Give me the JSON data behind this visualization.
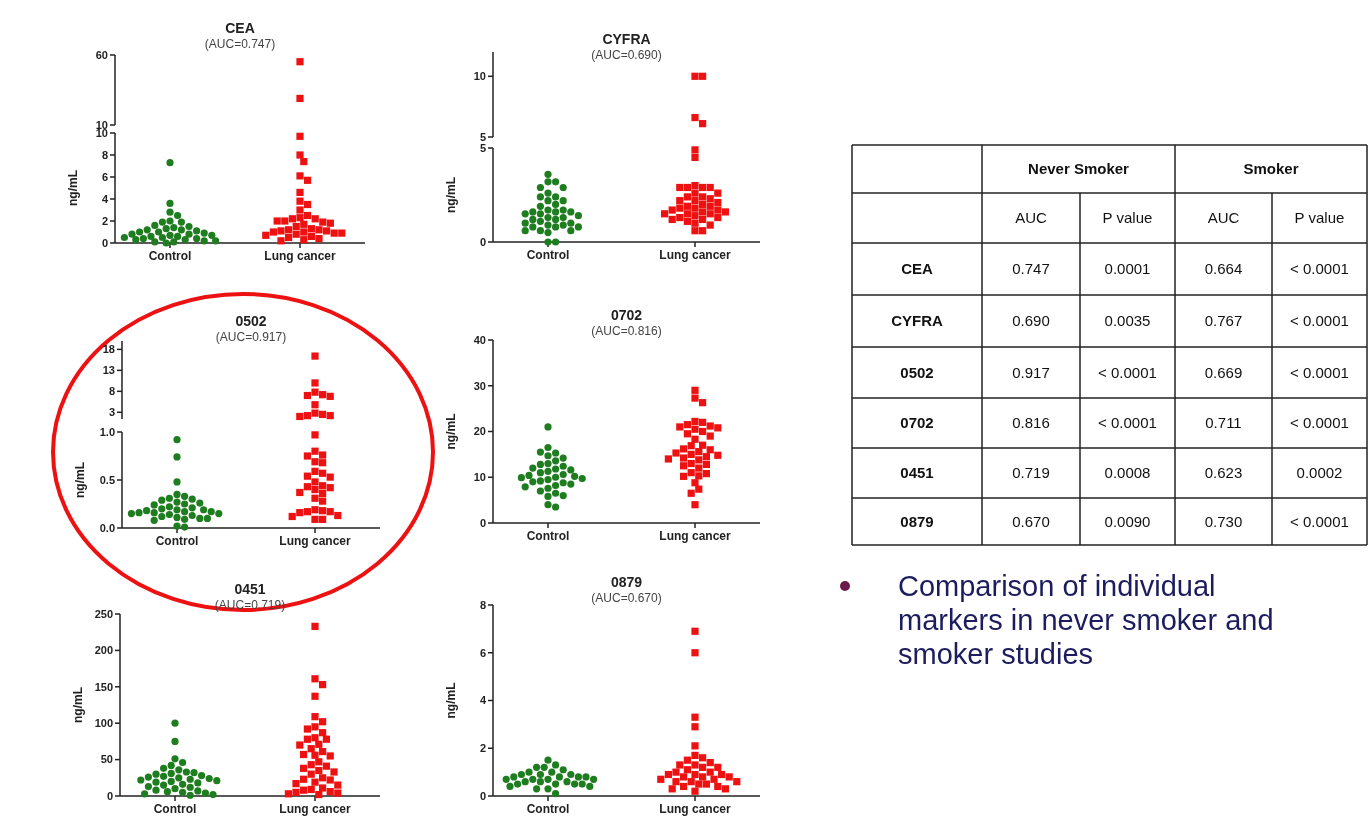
{
  "chart_data": [
    {
      "type": "scatter",
      "title": "CEA",
      "subtitle": "(AUC=0.747)",
      "categories": [
        "Control",
        "Lung cancer"
      ],
      "tick_labels": "y",
      "ylim": [
        10,
        60
      ],
      "yticks": [
        10,
        60
      ],
      "series": [
        {
          "type": "scatter",
          "color": "#ee1111",
          "marker": "square",
          "x": [
            "Lung cancer",
            "Lung cancer"
          ],
          "values": [
            55.2,
            29
          ]
        }
      ]
    },
    {
      "type": "scatter",
      "categories": [
        "Control",
        "Lung cancer"
      ],
      "ylabel": "ng/mL",
      "ylim": [
        0,
        10
      ],
      "yticks": [
        0,
        2,
        4,
        6,
        8,
        10
      ],
      "series": [
        {
          "type": "scatter",
          "color": "#1e7d1e",
          "marker": "circle",
          "x": [
            "Control",
            "Control",
            "Control",
            "Control",
            "Control",
            "Control",
            "Control",
            "Control",
            "Control",
            "Control",
            "Control",
            "Control",
            "Control",
            "Control",
            "Control",
            "Control",
            "Control",
            "Control",
            "Control",
            "Control",
            "Control",
            "Control",
            "Control",
            "Control",
            "Control",
            "Control",
            "Control",
            "Control",
            "Control",
            "Control",
            "Control",
            "Control",
            "Control",
            "Control"
          ],
          "values": [
            7.3,
            3.6,
            2.8,
            2.5,
            2.0,
            1.9,
            1.9,
            1.6,
            1.5,
            1.4,
            1.3,
            1.2,
            1.2,
            1.1,
            1.0,
            1.0,
            0.9,
            0.8,
            0.8,
            0.7,
            0.7,
            0.6,
            0.6,
            0.5,
            0.5,
            0.4,
            0.4,
            0.3,
            0.3,
            0.2,
            0.2,
            0.1,
            0.1,
            0.0
          ]
        },
        {
          "type": "scatter",
          "color": "#ee1111",
          "marker": "square",
          "x": [
            "Lung cancer",
            "Lung cancer",
            "Lung cancer",
            "Lung cancer",
            "Lung cancer",
            "Lung cancer",
            "Lung cancer",
            "Lung cancer",
            "Lung cancer",
            "Lung cancer",
            "Lung cancer",
            "Lung cancer",
            "Lung cancer",
            "Lung cancer",
            "Lung cancer",
            "Lung cancer",
            "Lung cancer",
            "Lung cancer",
            "Lung cancer",
            "Lung cancer",
            "Lung cancer",
            "Lung cancer",
            "Lung cancer",
            "Lung cancer",
            "Lung cancer",
            "Lung cancer",
            "Lung cancer",
            "Lung cancer",
            "Lung cancer",
            "Lung cancer",
            "Lung cancer",
            "Lung cancer",
            "Lung cancer",
            "Lung cancer",
            "Lung cancer"
          ],
          "values": [
            9.7,
            8.0,
            7.4,
            6.1,
            5.7,
            4.6,
            3.8,
            3.5,
            3.0,
            2.5,
            2.3,
            2.2,
            2.2,
            2.0,
            1.9,
            1.7,
            1.5,
            1.3,
            1.2,
            1.2,
            1.1,
            1.1,
            1.0,
            1.0,
            0.9,
            0.8,
            0.7,
            0.6,
            0.5,
            0.4,
            0.3,
            0.2,
            2.0,
            1.8,
            0.9
          ]
        }
      ]
    },
    {
      "type": "scatter",
      "title": "CYFRA",
      "subtitle": "(AUC=0.690)",
      "categories": [
        "Control",
        "Lung cancer"
      ],
      "tick_labels": "y",
      "ylim": [
        5,
        12
      ],
      "yticks": [
        5,
        10
      ],
      "series": [
        {
          "type": "scatter",
          "color": "#ee1111",
          "marker": "square",
          "x": [
            "Lung cancer",
            "Lung cancer",
            "Lung cancer",
            "Lung cancer"
          ],
          "values": [
            10.0,
            10.0,
            6.6,
            6.1
          ]
        }
      ]
    },
    {
      "type": "scatter",
      "categories": [
        "Control",
        "Lung cancer"
      ],
      "ylabel": "ng/mL",
      "ylim": [
        0,
        5
      ],
      "yticks": [
        0,
        5
      ],
      "series": [
        {
          "type": "scatter",
          "color": "#1e7d1e",
          "marker": "circle",
          "x": [
            "Control",
            "Control",
            "Control",
            "Control",
            "Control",
            "Control",
            "Control",
            "Control",
            "Control",
            "Control",
            "Control",
            "Control",
            "Control",
            "Control",
            "Control",
            "Control",
            "Control",
            "Control",
            "Control",
            "Control",
            "Control",
            "Control",
            "Control",
            "Control",
            "Control",
            "Control",
            "Control",
            "Control",
            "Control",
            "Control",
            "Control",
            "Control",
            "Control",
            "Control",
            "Control",
            "Control",
            "Control",
            "Control"
          ],
          "values": [
            3.6,
            3.2,
            3.2,
            2.9,
            2.9,
            2.6,
            2.4,
            2.4,
            2.2,
            2.2,
            2.0,
            1.9,
            1.7,
            1.7,
            1.6,
            1.6,
            1.6,
            1.5,
            1.5,
            1.4,
            1.3,
            1.3,
            1.2,
            1.2,
            1.1,
            1.0,
            1.0,
            0.9,
            0.9,
            0.8,
            0.8,
            0.8,
            0.6,
            0.6,
            0.6,
            0.5,
            0.0,
            0.0
          ]
        },
        {
          "type": "scatter",
          "color": "#ee1111",
          "marker": "square",
          "x": [
            "Lung cancer",
            "Lung cancer",
            "Lung cancer",
            "Lung cancer",
            "Lung cancer",
            "Lung cancer",
            "Lung cancer",
            "Lung cancer",
            "Lung cancer",
            "Lung cancer",
            "Lung cancer",
            "Lung cancer",
            "Lung cancer",
            "Lung cancer",
            "Lung cancer",
            "Lung cancer",
            "Lung cancer",
            "Lung cancer",
            "Lung cancer",
            "Lung cancer",
            "Lung cancer",
            "Lung cancer",
            "Lung cancer",
            "Lung cancer",
            "Lung cancer",
            "Lung cancer",
            "Lung cancer",
            "Lung cancer",
            "Lung cancer",
            "Lung cancer",
            "Lung cancer",
            "Lung cancer",
            "Lung cancer",
            "Lung cancer",
            "Lung cancer",
            "Lung cancer",
            "Lung cancer"
          ],
          "values": [
            4.9,
            4.5,
            3.0,
            2.9,
            2.9,
            2.9,
            2.9,
            2.6,
            2.6,
            2.4,
            2.4,
            2.3,
            2.2,
            2.2,
            2.1,
            2.0,
            1.9,
            1.9,
            1.8,
            1.8,
            1.7,
            1.7,
            1.6,
            1.6,
            1.5,
            1.5,
            1.5,
            1.4,
            1.3,
            1.3,
            1.2,
            1.2,
            1.1,
            1.0,
            0.6,
            0.6,
            0.9
          ]
        }
      ]
    },
    {
      "type": "scatter",
      "title": "0502",
      "subtitle": "(AUC=0.917)",
      "categories": [
        "Control",
        "Lung cancer"
      ],
      "tick_labels": "y",
      "ylim": [
        1.4,
        20
      ],
      "yticks": [
        3,
        8,
        13,
        18
      ],
      "series": [
        {
          "type": "scatter",
          "color": "#ee1111",
          "marker": "square",
          "x": [
            "Lung cancer",
            "Lung cancer",
            "Lung cancer",
            "Lung cancer",
            "Lung cancer",
            "Lung cancer",
            "Lung cancer",
            "Lung cancer",
            "Lung cancer",
            "Lung cancer",
            "Lung cancer",
            "Lung cancer"
          ],
          "values": [
            16.4,
            10.0,
            7.8,
            7.2,
            7.0,
            6.8,
            4.8,
            2.8,
            2.5,
            2.2,
            2.2,
            2.0
          ]
        }
      ]
    },
    {
      "type": "scatter",
      "categories": [
        "Control",
        "Lung cancer"
      ],
      "ylabel": "ng/mL",
      "ylim": [
        0,
        1.0
      ],
      "yticks": [
        {
          "value": 0,
          "label": "0.0"
        },
        {
          "value": 0.5,
          "label": "0.5"
        },
        {
          "value": 1.0,
          "label": "1.0"
        }
      ],
      "series": [
        {
          "type": "scatter",
          "color": "#1e7d1e",
          "marker": "circle",
          "x": [
            "Control",
            "Control",
            "Control",
            "Control",
            "Control",
            "Control",
            "Control",
            "Control",
            "Control",
            "Control",
            "Control",
            "Control",
            "Control",
            "Control",
            "Control",
            "Control",
            "Control",
            "Control",
            "Control",
            "Control",
            "Control",
            "Control",
            "Control",
            "Control",
            "Control",
            "Control",
            "Control",
            "Control",
            "Control",
            "Control",
            "Control",
            "Control",
            "Control",
            "Control"
          ],
          "values": [
            0.92,
            0.74,
            0.48,
            0.35,
            0.33,
            0.31,
            0.3,
            0.29,
            0.27,
            0.26,
            0.25,
            0.24,
            0.22,
            0.21,
            0.2,
            0.19,
            0.19,
            0.18,
            0.17,
            0.17,
            0.16,
            0.16,
            0.15,
            0.15,
            0.14,
            0.13,
            0.12,
            0.11,
            0.1,
            0.1,
            0.09,
            0.08,
            0.02,
            0.01
          ]
        },
        {
          "type": "scatter",
          "color": "#ee1111",
          "marker": "square",
          "x": [
            "Lung cancer",
            "Lung cancer",
            "Lung cancer",
            "Lung cancer",
            "Lung cancer",
            "Lung cancer",
            "Lung cancer",
            "Lung cancer",
            "Lung cancer",
            "Lung cancer",
            "Lung cancer",
            "Lung cancer",
            "Lung cancer",
            "Lung cancer",
            "Lung cancer",
            "Lung cancer",
            "Lung cancer",
            "Lung cancer",
            "Lung cancer",
            "Lung cancer",
            "Lung cancer",
            "Lung cancer",
            "Lung cancer",
            "Lung cancer",
            "Lung cancer",
            "Lung cancer",
            "Lung cancer",
            "Lung cancer"
          ],
          "values": [
            0.97,
            0.8,
            0.76,
            0.75,
            0.69,
            0.68,
            0.59,
            0.57,
            0.54,
            0.53,
            0.48,
            0.44,
            0.43,
            0.42,
            0.4,
            0.37,
            0.36,
            0.31,
            0.28,
            0.19,
            0.18,
            0.17,
            0.17,
            0.16,
            0.13,
            0.12,
            0.09,
            0.09
          ]
        }
      ]
    },
    {
      "type": "scatter",
      "title": "0702",
      "subtitle": "(AUC=0.816)",
      "categories": [
        "Control",
        "Lung cancer"
      ],
      "ylabel": "ng/mL",
      "ylim": [
        0,
        40
      ],
      "yticks": [
        0,
        10,
        20,
        30,
        40
      ],
      "series": [
        {
          "type": "scatter",
          "color": "#1e7d1e",
          "marker": "circle",
          "x": [
            "Control",
            "Control",
            "Control",
            "Control",
            "Control",
            "Control",
            "Control",
            "Control",
            "Control",
            "Control",
            "Control",
            "Control",
            "Control",
            "Control",
            "Control",
            "Control",
            "Control",
            "Control",
            "Control",
            "Control",
            "Control",
            "Control",
            "Control",
            "Control",
            "Control",
            "Control",
            "Control",
            "Control",
            "Control",
            "Control",
            "Control",
            "Control",
            "Control",
            "Control",
            "Control"
          ],
          "values": [
            21.0,
            16.5,
            15.3,
            15.5,
            14.7,
            14.2,
            13.6,
            13.0,
            12.8,
            12.4,
            12.0,
            11.8,
            11.6,
            11.3,
            11.0,
            10.6,
            10.4,
            10.2,
            10.0,
            9.9,
            9.7,
            9.5,
            9.2,
            9.0,
            8.8,
            8.5,
            8.2,
            7.9,
            7.6,
            7.0,
            6.5,
            6.0,
            5.8,
            4.0,
            3.5
          ]
        },
        {
          "type": "scatter",
          "color": "#ee1111",
          "marker": "square",
          "x": [
            "Lung cancer",
            "Lung cancer",
            "Lung cancer",
            "Lung cancer",
            "Lung cancer",
            "Lung cancer",
            "Lung cancer",
            "Lung cancer",
            "Lung cancer",
            "Lung cancer",
            "Lung cancer",
            "Lung cancer",
            "Lung cancer",
            "Lung cancer",
            "Lung cancer",
            "Lung cancer",
            "Lung cancer",
            "Lung cancer",
            "Lung cancer",
            "Lung cancer",
            "Lung cancer",
            "Lung cancer",
            "Lung cancer",
            "Lung cancer",
            "Lung cancer",
            "Lung cancer",
            "Lung cancer",
            "Lung cancer",
            "Lung cancer",
            "Lung cancer",
            "Lung cancer",
            "Lung cancer",
            "Lung cancer",
            "Lung cancer",
            "Lung cancer",
            "Lung cancer",
            "Lung cancer",
            "Lung cancer"
          ],
          "values": [
            29.0,
            27.3,
            26.3,
            22.2,
            22.0,
            21.5,
            21.2,
            21.0,
            20.8,
            20.5,
            20.0,
            19.5,
            19.0,
            18.3,
            17.0,
            16.9,
            16.2,
            16.0,
            15.6,
            15.3,
            15.0,
            14.8,
            14.5,
            14.2,
            14.0,
            13.8,
            13.0,
            12.8,
            12.5,
            12.0,
            11.0,
            10.8,
            10.3,
            10.2,
            8.8,
            7.4,
            6.5,
            4.0
          ]
        }
      ]
    },
    {
      "type": "scatter",
      "title": "0451",
      "subtitle": "(AUC=0.719)",
      "categories": [
        "Control",
        "Lung cancer"
      ],
      "ylabel": "ng/mL",
      "ylim": [
        0,
        250
      ],
      "yticks": [
        0,
        50,
        100,
        150,
        200,
        250
      ],
      "series": [
        {
          "type": "scatter",
          "color": "#1e7d1e",
          "marker": "circle",
          "x": [
            "Control",
            "Control",
            "Control",
            "Control",
            "Control",
            "Control",
            "Control",
            "Control",
            "Control",
            "Control",
            "Control",
            "Control",
            "Control",
            "Control",
            "Control",
            "Control",
            "Control",
            "Control",
            "Control",
            "Control",
            "Control",
            "Control",
            "Control",
            "Control",
            "Control",
            "Control",
            "Control",
            "Control",
            "Control",
            "Control",
            "Control",
            "Control",
            "Control",
            "Control",
            "Control"
          ],
          "values": [
            100,
            75,
            51,
            46,
            42,
            38,
            36,
            33,
            32,
            31,
            30,
            28,
            27,
            26,
            25,
            24,
            23,
            22,
            21,
            20,
            19,
            18,
            16,
            15,
            13,
            12,
            10,
            8,
            7,
            6,
            5,
            4,
            3,
            2,
            1
          ]
        },
        {
          "type": "scatter",
          "color": "#ee1111",
          "marker": "square",
          "x": [
            "Lung cancer",
            "Lung cancer",
            "Lung cancer",
            "Lung cancer",
            "Lung cancer",
            "Lung cancer",
            "Lung cancer",
            "Lung cancer",
            "Lung cancer",
            "Lung cancer",
            "Lung cancer",
            "Lung cancer",
            "Lung cancer",
            "Lung cancer",
            "Lung cancer",
            "Lung cancer",
            "Lung cancer",
            "Lung cancer",
            "Lung cancer",
            "Lung cancer",
            "Lung cancer",
            "Lung cancer",
            "Lung cancer",
            "Lung cancer",
            "Lung cancer",
            "Lung cancer",
            "Lung cancer",
            "Lung cancer",
            "Lung cancer",
            "Lung cancer",
            "Lung cancer",
            "Lung cancer",
            "Lung cancer",
            "Lung cancer",
            "Lung cancer",
            "Lung cancer",
            "Lung cancer",
            "Lung cancer",
            "Lung cancer",
            "Lung cancer"
          ],
          "values": [
            233,
            161,
            153,
            137,
            109,
            102,
            95,
            92,
            87,
            80,
            78,
            78,
            71,
            70,
            65,
            61,
            57,
            56,
            55,
            47,
            43,
            41,
            38,
            35,
            33,
            30,
            25,
            23,
            22,
            19,
            17,
            15,
            11,
            9,
            8,
            6,
            5,
            4,
            3,
            2
          ]
        }
      ]
    },
    {
      "type": "scatter",
      "title": "0879",
      "subtitle": "(AUC=0.670)",
      "categories": [
        "Control",
        "Lung cancer"
      ],
      "ylabel": "ng/mL",
      "ylim": [
        0,
        8
      ],
      "yticks": [
        0,
        2,
        4,
        6,
        8
      ],
      "series": [
        {
          "type": "scatter",
          "color": "#1e7d1e",
          "marker": "circle",
          "x": [
            "Control",
            "Control",
            "Control",
            "Control",
            "Control",
            "Control",
            "Control",
            "Control",
            "Control",
            "Control",
            "Control",
            "Control",
            "Control",
            "Control",
            "Control",
            "Control",
            "Control",
            "Control",
            "Control",
            "Control",
            "Control",
            "Control",
            "Control",
            "Control",
            "Control",
            "Control",
            "Control",
            "Control",
            "Control",
            "Control"
          ],
          "values": [
            1.5,
            1.3,
            1.2,
            1.2,
            1.1,
            1.0,
            1.0,
            0.9,
            0.9,
            0.9,
            0.8,
            0.8,
            0.8,
            0.8,
            0.7,
            0.7,
            0.7,
            0.7,
            0.6,
            0.6,
            0.6,
            0.5,
            0.5,
            0.5,
            0.5,
            0.4,
            0.4,
            0.3,
            0.3,
            0.1
          ]
        },
        {
          "type": "scatter",
          "color": "#ee1111",
          "marker": "square",
          "x": [
            "Lung cancer",
            "Lung cancer",
            "Lung cancer",
            "Lung cancer",
            "Lung cancer",
            "Lung cancer",
            "Lung cancer",
            "Lung cancer",
            "Lung cancer",
            "Lung cancer",
            "Lung cancer",
            "Lung cancer",
            "Lung cancer",
            "Lung cancer",
            "Lung cancer",
            "Lung cancer",
            "Lung cancer",
            "Lung cancer",
            "Lung cancer",
            "Lung cancer",
            "Lung cancer",
            "Lung cancer",
            "Lung cancer",
            "Lung cancer",
            "Lung cancer",
            "Lung cancer",
            "Lung cancer",
            "Lung cancer",
            "Lung cancer",
            "Lung cancer",
            "Lung cancer",
            "Lung cancer",
            "Lung cancer",
            "Lung cancer"
          ],
          "values": [
            6.9,
            6.0,
            3.3,
            2.9,
            2.1,
            1.7,
            1.6,
            1.5,
            1.4,
            1.3,
            1.3,
            1.2,
            1.2,
            1.1,
            1.0,
            1.0,
            0.9,
            0.9,
            0.9,
            0.8,
            0.8,
            0.8,
            0.7,
            0.7,
            0.6,
            0.6,
            0.6,
            0.5,
            0.5,
            0.4,
            0.4,
            0.3,
            0.3,
            0.2
          ]
        }
      ]
    },
    {
      "type": "other",
      "annotations": [
        "Never Smoker",
        "Smoker"
      ],
      "categories": [
        "AUC",
        "P value",
        "AUC",
        "P value"
      ],
      "y_categories": [
        "CEA",
        "CYFRA",
        "0502",
        "0702",
        "0451",
        "0879"
      ],
      "cell_labels": [
        [
          "0.747",
          "0.0001",
          "0.664",
          "< 0.0001"
        ],
        [
          "0.690",
          "0.0035",
          "0.767",
          "< 0.0001"
        ],
        [
          "0.917",
          "< 0.0001",
          "0.669",
          "< 0.0001"
        ],
        [
          "0.816",
          "< 0.0001",
          "0.711",
          "< 0.0001"
        ],
        [
          "0.719",
          "0.0008",
          "0.623",
          "0.0002"
        ],
        [
          "0.670",
          "0.0090",
          "0.730",
          "< 0.0001"
        ]
      ]
    },
    {
      "type": "other",
      "annotations": [
        "Comparison of individual markers in never smoker and smoker studies"
      ]
    }
  ]
}
